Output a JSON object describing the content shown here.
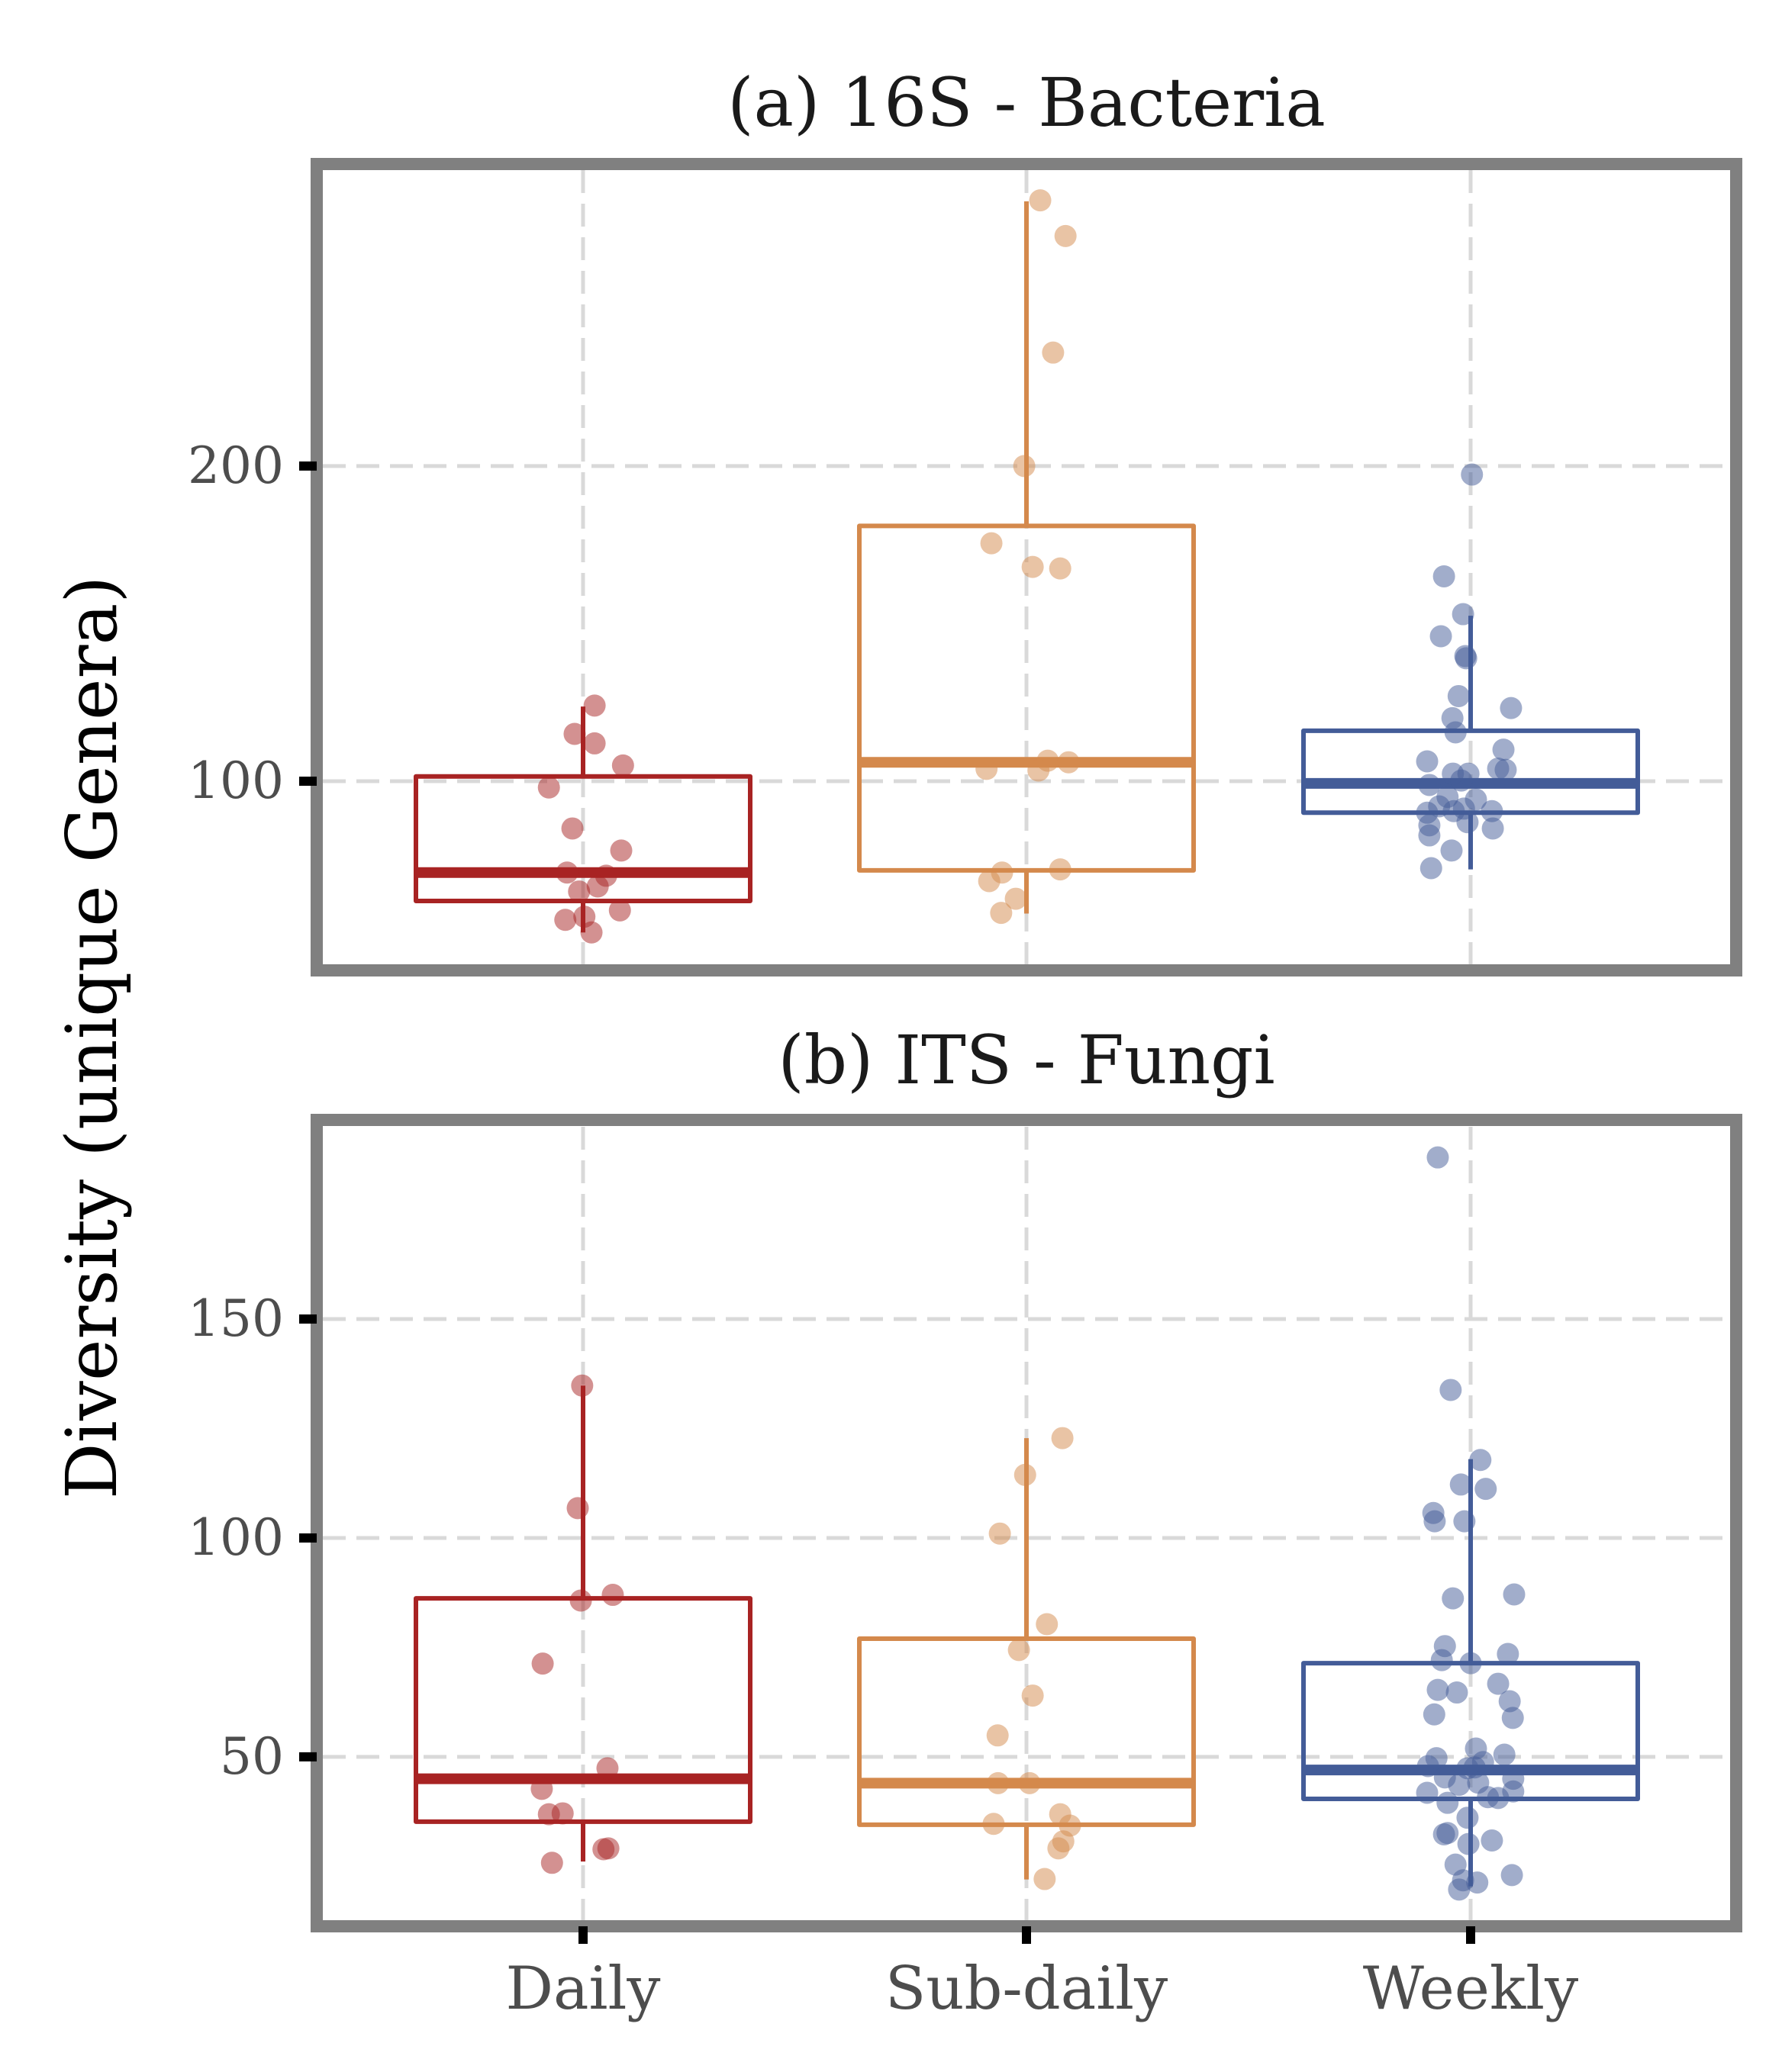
{
  "chart_data": {
    "type": "box",
    "ylabel": "Diversity (unique Genera)",
    "xlabel": "",
    "categories": [
      "Daily",
      "Sub-daily",
      "Weekly"
    ],
    "colors": {
      "Daily": "#A82323",
      "Sub-daily": "#D4894C",
      "Weekly": "#435C98"
    },
    "point_opacity": 0.5,
    "panels": [
      {
        "title": "(a) 16S - Bacteria",
        "ylim": [
          41.9,
          293.9
        ],
        "yticks": [
          100,
          200
        ],
        "grid": true,
        "boxes": [
          {
            "category": "Daily",
            "whisker_low": 52,
            "q1": 62,
            "median": 71,
            "q3": 101.5,
            "whisker_high": 123.7,
            "points": [
              [
                0.026,
                124
              ],
              [
                -0.019,
                115
              ],
              [
                0.026,
                112
              ],
              [
                0.09,
                105
              ],
              [
                -0.077,
                98
              ],
              [
                -0.024,
                85
              ],
              [
                0.086,
                78
              ],
              [
                -0.036,
                71
              ],
              [
                0.052,
                70
              ],
              [
                -0.009,
                65
              ],
              [
                0.033,
                66.6
              ],
              [
                0.083,
                59
              ],
              [
                -0.04,
                56
              ],
              [
                0.003,
                57
              ],
              [
                0.019,
                52
              ]
            ]
          },
          {
            "category": "Sub-daily",
            "whisker_low": 58,
            "q1": 71.7,
            "median": 106,
            "q3": 181,
            "whisker_high": 284,
            "points": [
              [
                0.031,
                284.3
              ],
              [
                0.088,
                273
              ],
              [
                0.06,
                236
              ],
              [
                -0.005,
                200
              ],
              [
                -0.079,
                175.5
              ],
              [
                0.014,
                168
              ],
              [
                0.076,
                167.5
              ],
              [
                -0.09,
                103.9
              ],
              [
                0.027,
                103.4
              ],
              [
                0.048,
                106.5
              ],
              [
                0.095,
                106
              ],
              [
                -0.055,
                71
              ],
              [
                0.076,
                72
              ],
              [
                -0.084,
                68.3
              ],
              [
                -0.024,
                62.7
              ],
              [
                -0.057,
                58.2
              ]
            ]
          },
          {
            "category": "Weekly",
            "whisker_low": 72,
            "q1": 90,
            "median": 99.3,
            "q3": 116,
            "whisker_high": 152.5,
            "points": [
              [
                0.003,
                197.3
              ],
              [
                -0.06,
                165
              ],
              [
                -0.017,
                153
              ],
              [
                -0.067,
                146
              ],
              [
                -0.012,
                139.7
              ],
              [
                -0.01,
                139
              ],
              [
                -0.027,
                127
              ],
              [
                0.091,
                123.2
              ],
              [
                -0.041,
                120
              ],
              [
                -0.034,
                115.5
              ],
              [
                0.074,
                110
              ],
              [
                -0.098,
                106.3
              ],
              [
                0.062,
                104
              ],
              [
                0.079,
                103.6
              ],
              [
                -0.04,
                102.4
              ],
              [
                -0.005,
                102.4
              ],
              [
                -0.021,
                100.2
              ],
              [
                -0.093,
                98.8
              ],
              [
                -0.052,
                95
              ],
              [
                0.012,
                94.2
              ],
              [
                -0.071,
                92
              ],
              [
                -0.098,
                90
              ],
              [
                -0.038,
                90.5
              ],
              [
                -0.015,
                91.3
              ],
              [
                0.048,
                90.5
              ],
              [
                -0.007,
                87
              ],
              [
                -0.093,
                86
              ],
              [
                0.05,
                85
              ],
              [
                -0.093,
                82.8
              ],
              [
                -0.043,
                78
              ],
              [
                -0.089,
                72.4
              ]
            ]
          }
        ]
      },
      {
        "title": "(b) ITS - Fungi",
        "ylim": [
          12.7,
          193.9
        ],
        "yticks": [
          50,
          100,
          150
        ],
        "grid": true,
        "boxes": [
          {
            "category": "Daily",
            "whisker_low": 26.1,
            "q1": 35.2,
            "median": 45,
            "q3": 86.2,
            "whisker_high": 134.8,
            "points": [
              [
                -0.002,
                134.8
              ],
              [
                -0.012,
                106.8
              ],
              [
                -0.005,
                85.7
              ],
              [
                0.067,
                87
              ],
              [
                -0.091,
                71.3
              ],
              [
                0.055,
                47.4
              ],
              [
                -0.093,
                42.7
              ],
              [
                -0.077,
                36.9
              ],
              [
                -0.046,
                37.1
              ],
              [
                0.046,
                28.9
              ],
              [
                0.057,
                29.1
              ],
              [
                -0.07,
                25.8
              ]
            ]
          },
          {
            "category": "Sub-daily",
            "whisker_low": 22,
            "q1": 34.5,
            "median": 44,
            "q3": 77,
            "whisker_high": 122.8,
            "points": [
              [
                0.081,
                122.8
              ],
              [
                -0.003,
                114.4
              ],
              [
                -0.06,
                101
              ],
              [
                0.046,
                80.3
              ],
              [
                -0.017,
                74.4
              ],
              [
                0.014,
                64
              ],
              [
                -0.065,
                54.9
              ],
              [
                -0.064,
                44
              ],
              [
                0.007,
                44
              ],
              [
                0.076,
                36.9
              ],
              [
                -0.074,
                34.7
              ],
              [
                0.098,
                34.3
              ],
              [
                0.083,
                30.7
              ],
              [
                0.072,
                29.1
              ],
              [
                0.041,
                22.1
              ]
            ]
          },
          {
            "category": "Weekly",
            "whisker_low": 20.4,
            "q1": 40.4,
            "median": 47,
            "q3": 71.4,
            "whisker_high": 118,
            "points": [
              [
                -0.074,
                186.9
              ],
              [
                -0.045,
                133.8
              ],
              [
                0.022,
                117.8
              ],
              [
                -0.022,
                112.2
              ],
              [
                0.034,
                111.2
              ],
              [
                -0.084,
                105.7
              ],
              [
                -0.081,
                103.8
              ],
              [
                -0.014,
                103.8
              ],
              [
                -0.04,
                86.2
              ],
              [
                0.098,
                87.1
              ],
              [
                -0.058,
                75.3
              ],
              [
                0.084,
                73.5
              ],
              [
                -0.065,
                72.1
              ],
              [
                0,
                71.4
              ],
              [
                -0.074,
                65.3
              ],
              [
                -0.031,
                64.7
              ],
              [
                0.062,
                66.7
              ],
              [
                0.088,
                62.7
              ],
              [
                0.095,
                58.9
              ],
              [
                -0.082,
                59.7
              ],
              [
                0.012,
                51.9
              ],
              [
                0.076,
                50.5
              ],
              [
                -0.077,
                49.7
              ],
              [
                -0.096,
                47.9
              ],
              [
                0.028,
                48.8
              ],
              [
                -0.007,
                47.4
              ],
              [
                0.009,
                47.6
              ],
              [
                -0.058,
                45.3
              ],
              [
                -0.026,
                43.6
              ],
              [
                0.017,
                44.1
              ],
              [
                0.096,
                45
              ],
              [
                -0.098,
                41.8
              ],
              [
                0.096,
                42.1
              ],
              [
                0.039,
                40.8
              ],
              [
                0.062,
                40.6
              ],
              [
                -0.052,
                39.5
              ],
              [
                -0.007,
                36.1
              ],
              [
                -0.06,
                32.3
              ],
              [
                -0.052,
                32.6
              ],
              [
                0.048,
                30.9
              ],
              [
                -0.005,
                30.1
              ],
              [
                -0.034,
                25.4
              ],
              [
                0.093,
                23
              ],
              [
                0.015,
                21.3
              ],
              [
                -0.017,
                21.8
              ],
              [
                -0.026,
                19.7
              ]
            ]
          }
        ]
      }
    ]
  }
}
